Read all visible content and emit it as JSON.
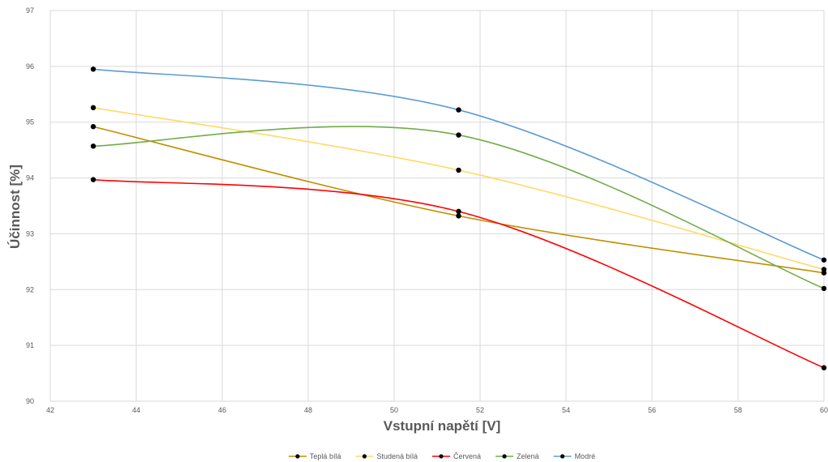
{
  "chart_data": {
    "type": "line",
    "title": "",
    "xlabel": "Vstupní napětí [V]",
    "ylabel": "Účinnost [%]",
    "xlim": [
      42,
      60
    ],
    "ylim": [
      90,
      97
    ],
    "x_ticks": [
      "42",
      "44",
      "46",
      "48",
      "50",
      "52",
      "54",
      "56",
      "58",
      "60"
    ],
    "y_ticks": [
      "90",
      "91",
      "92",
      "93",
      "94",
      "95",
      "96",
      "97"
    ],
    "grid": true,
    "smooth": true,
    "legend_position": "bottom",
    "x": [
      43,
      51.5,
      60
    ],
    "series": [
      {
        "name": "Teplá bílá",
        "color": "#bf9000",
        "values": [
          94.92,
          93.32,
          92.3
        ]
      },
      {
        "name": "Studená bílá",
        "color": "#ffd966",
        "values": [
          95.26,
          94.14,
          92.36
        ]
      },
      {
        "name": "Červená",
        "color": "#ff0000",
        "values": [
          93.97,
          93.4,
          90.6
        ]
      },
      {
        "name": "Zelená",
        "color": "#70ad47",
        "values": [
          94.57,
          94.77,
          92.02
        ]
      },
      {
        "name": "Modré",
        "color": "#5b9bd5",
        "values": [
          95.95,
          95.22,
          92.53
        ]
      }
    ],
    "marker_color": "#000000"
  }
}
